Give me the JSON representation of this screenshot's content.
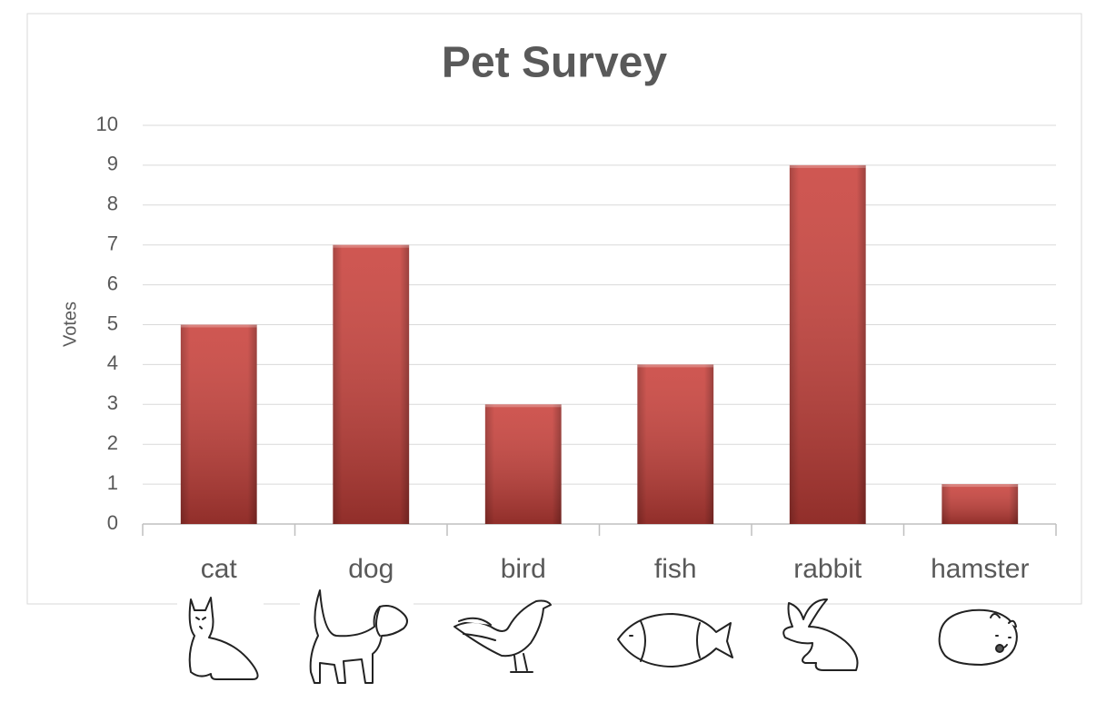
{
  "chart_data": {
    "type": "bar",
    "title": "Pet Survey",
    "y_label": "Votes",
    "categories": [
      "cat",
      "dog",
      "bird",
      "fish",
      "rabbit",
      "hamster"
    ],
    "values": [
      5,
      7,
      3,
      4,
      9,
      1
    ],
    "color": "#c9403a",
    "ylim": [
      0,
      10
    ],
    "yticks": [
      0,
      1,
      2,
      3,
      4,
      5,
      6,
      7,
      8,
      9,
      10
    ],
    "grid": true
  }
}
